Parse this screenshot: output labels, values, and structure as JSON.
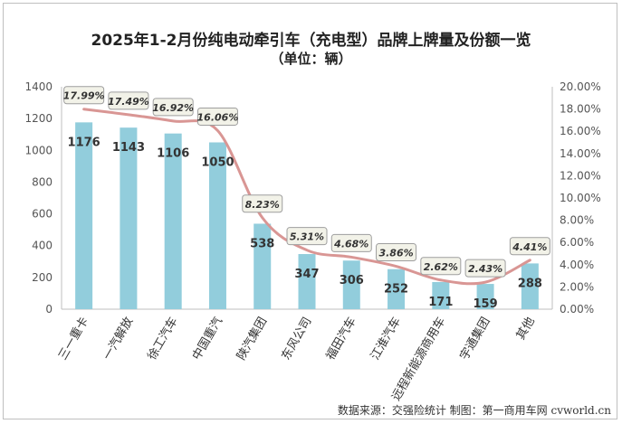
{
  "title": "2025年1-2月份纯电动牵引车（充电型）品牌上牌量及份额一览",
  "subtitle": "（单位：辆）",
  "source": "数据来源：交强险统计 制图：第一商用车网 cvworld.cn",
  "colors": {
    "bar": "#92cddc",
    "line": "#d99694",
    "label_bg": "#f2f2e8",
    "label_border": "#9e9e9e"
  },
  "chart_data": {
    "type": "bar",
    "categories": [
      "三一重卡",
      "一汽解放",
      "徐工汽车",
      "中国重汽",
      "陕汽集团",
      "东风公司",
      "福田汽车",
      "江淮汽车",
      "远程新能源商用车",
      "宇通集团",
      "其他"
    ],
    "series": [
      {
        "type": "bar",
        "values": [
          1176,
          1143,
          1106,
          1050,
          538,
          347,
          306,
          252,
          171,
          159,
          288
        ],
        "axis": "left"
      },
      {
        "type": "line",
        "values": [
          17.99,
          17.49,
          16.92,
          16.06,
          8.23,
          5.31,
          4.68,
          3.86,
          2.62,
          2.43,
          4.41
        ],
        "axis": "right"
      }
    ],
    "bar_labels": [
      "1176",
      "1143",
      "1106",
      "1050",
      "538",
      "347",
      "306",
      "252",
      "171",
      "159",
      "288"
    ],
    "line_labels": [
      "17.99%",
      "17.49%",
      "16.92%",
      "16.06%",
      "8.23%",
      "5.31%",
      "4.68%",
      "3.86%",
      "2.62%",
      "2.43%",
      "4.41%"
    ],
    "y_left": {
      "ylim": [
        0,
        1400
      ],
      "ticks": [
        "0",
        "200",
        "400",
        "600",
        "800",
        "1000",
        "1200",
        "1400"
      ]
    },
    "y_right": {
      "ylim": [
        0,
        20
      ],
      "ticks": [
        "0.00%",
        "2.00%",
        "4.00%",
        "6.00%",
        "8.00%",
        "10.00%",
        "12.00%",
        "14.00%",
        "16.00%",
        "18.00%",
        "20.00%"
      ]
    },
    "grid": false,
    "legend": "none"
  }
}
